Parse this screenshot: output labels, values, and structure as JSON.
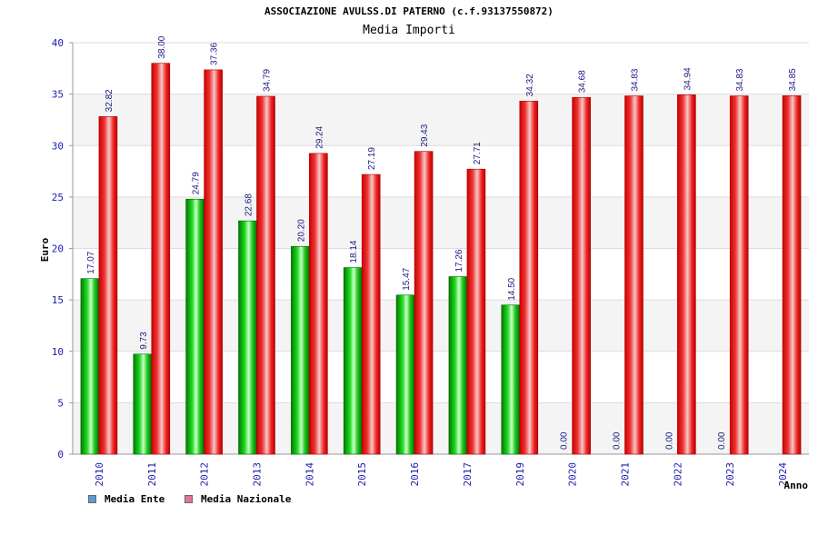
{
  "chart_data": {
    "type": "bar",
    "title": "ASSOCIAZIONE AVULSS.DI PATERNO (c.f.93137550872)",
    "subtitle": "Media Importi",
    "ylabel": "Euro",
    "xlabel": "Anno",
    "ylim": [
      0,
      40
    ],
    "yticks": [
      "0",
      "5",
      "10",
      "15",
      "20",
      "25",
      "30",
      "35",
      "40"
    ],
    "categories": [
      "2010",
      "2011",
      "2012",
      "2013",
      "2014",
      "2015",
      "2016",
      "2017",
      "2019",
      "2020",
      "2021",
      "2022",
      "2023",
      "2024"
    ],
    "series": [
      {
        "name": "Media Ente",
        "color": "#00b000",
        "values": [
          17.07,
          9.73,
          24.79,
          22.68,
          20.2,
          18.14,
          15.47,
          17.26,
          14.5,
          0,
          0,
          0,
          0,
          null
        ],
        "labels": [
          "17.07",
          "9.73",
          "24.79",
          "22.68",
          "20.20",
          "18.14",
          "15.47",
          "17.26",
          "14.50",
          "0.00",
          "0.00",
          "0.00",
          "0.00",
          ""
        ]
      },
      {
        "name": "Media Nazionale",
        "color": "#ee1111",
        "values": [
          32.82,
          38.0,
          37.36,
          34.79,
          29.24,
          27.19,
          29.43,
          27.71,
          34.32,
          34.68,
          34.83,
          34.94,
          34.83,
          34.85
        ],
        "labels": [
          "32.82",
          "38.00",
          "37.36",
          "34.79",
          "29.24",
          "27.19",
          "29.43",
          "27.71",
          "34.32",
          "34.68",
          "34.83",
          "34.94",
          "34.83",
          "34.85"
        ]
      }
    ],
    "grid": true,
    "legend_position": "bottom-left",
    "legend_swatch_colors": [
      "#5b9bd5",
      "#e0749a"
    ]
  }
}
